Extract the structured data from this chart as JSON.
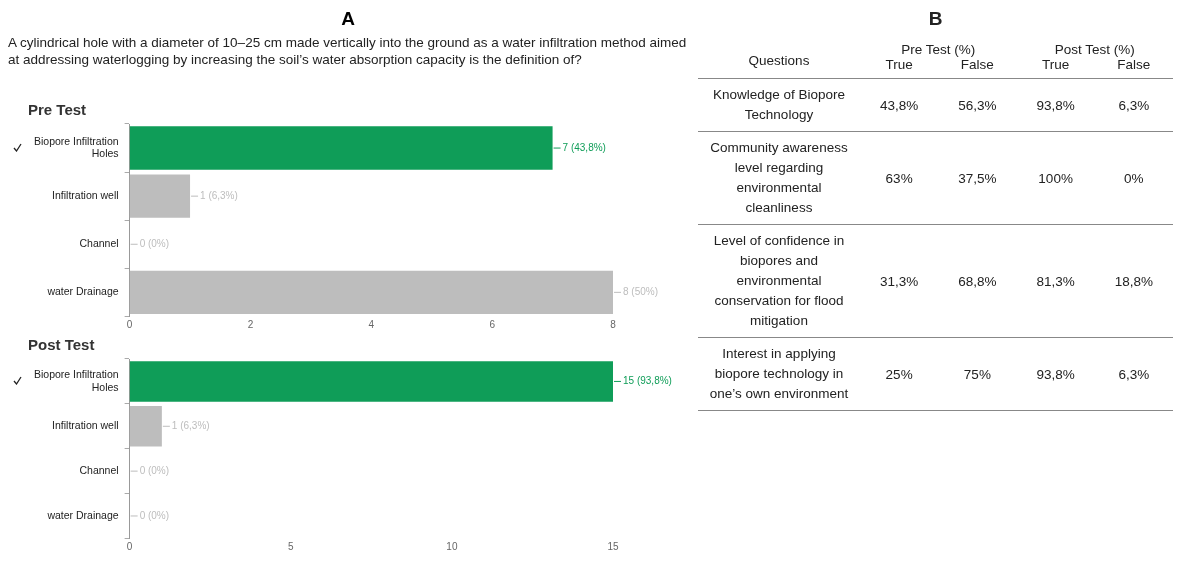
{
  "chart_data": [
    {
      "type": "other",
      "title": "A",
      "subtitle": "A cylindrical hole with a diameter of 10–25 cm made vertically into the ground as a water infiltration method aimed at addressing waterlogging by increasing the soil’s water absorption capacity is the definition of?"
    },
    {
      "type": "bar",
      "orientation": "horizontal",
      "title": "Pre Test",
      "categories": [
        "Biopore Infiltration Holes",
        "Infiltration well",
        "Channel",
        "water Drainage"
      ],
      "values": [
        7,
        1,
        0,
        8
      ],
      "colors": [
        "#0f9d58",
        "#bdbdbd",
        "#bdbdbd",
        "#bdbdbd"
      ],
      "value_labels": [
        "7 (43,8%)",
        "1 (6,3%)",
        "0 (0%)",
        "8 (50%)"
      ],
      "xlim": [
        0,
        8
      ],
      "xticks": [
        0,
        2,
        4,
        6,
        8
      ]
    },
    {
      "type": "bar",
      "orientation": "horizontal",
      "title": "Post Test",
      "categories": [
        "Biopore Infiltration Holes",
        "Infiltration well",
        "Channel",
        "water Drainage"
      ],
      "values": [
        15,
        1,
        0,
        0
      ],
      "colors": [
        "#0f9d58",
        "#bdbdbd",
        "#bdbdbd",
        "#bdbdbd"
      ],
      "value_labels": [
        "15 (93,8%)",
        "1 (6,3%)",
        "0 (0%)",
        "0 (0%)"
      ],
      "xlim": [
        0,
        15
      ],
      "xticks": [
        0,
        5,
        10,
        15
      ]
    },
    {
      "type": "other",
      "title": "B",
      "annotations": [
        "Questions",
        "Pre Test (%)",
        "Post Test (%)"
      ],
      "categories": [
        "Knowledge of Biopore Technology",
        "Community awareness level regarding environmental cleanliness",
        "Level of confidence in biopores and environmental conservation for flood mitigation",
        "Interest in applying biopore technology in one’s own environment"
      ],
      "series": [
        {
          "name": "True",
          "values": [
            43.8,
            63,
            31.3,
            25
          ],
          "value_labels": [
            "43,8%",
            "63%",
            "31,3%",
            "25%"
          ]
        },
        {
          "name": "False",
          "values": [
            56.3,
            37.5,
            68.8,
            75
          ],
          "value_labels": [
            "56,3%",
            "37,5%",
            "68,8%",
            "75%"
          ]
        },
        {
          "name": "True",
          "values": [
            93.8,
            100,
            81.3,
            93.8
          ],
          "value_labels": [
            "93,8%",
            "100%",
            "81,3%",
            "93,8%"
          ]
        },
        {
          "name": "False",
          "values": [
            6.3,
            0,
            18.8,
            6.3
          ],
          "value_labels": [
            "6,3%",
            "0%",
            "18,8%",
            "6,3%"
          ]
        }
      ]
    }
  ]
}
